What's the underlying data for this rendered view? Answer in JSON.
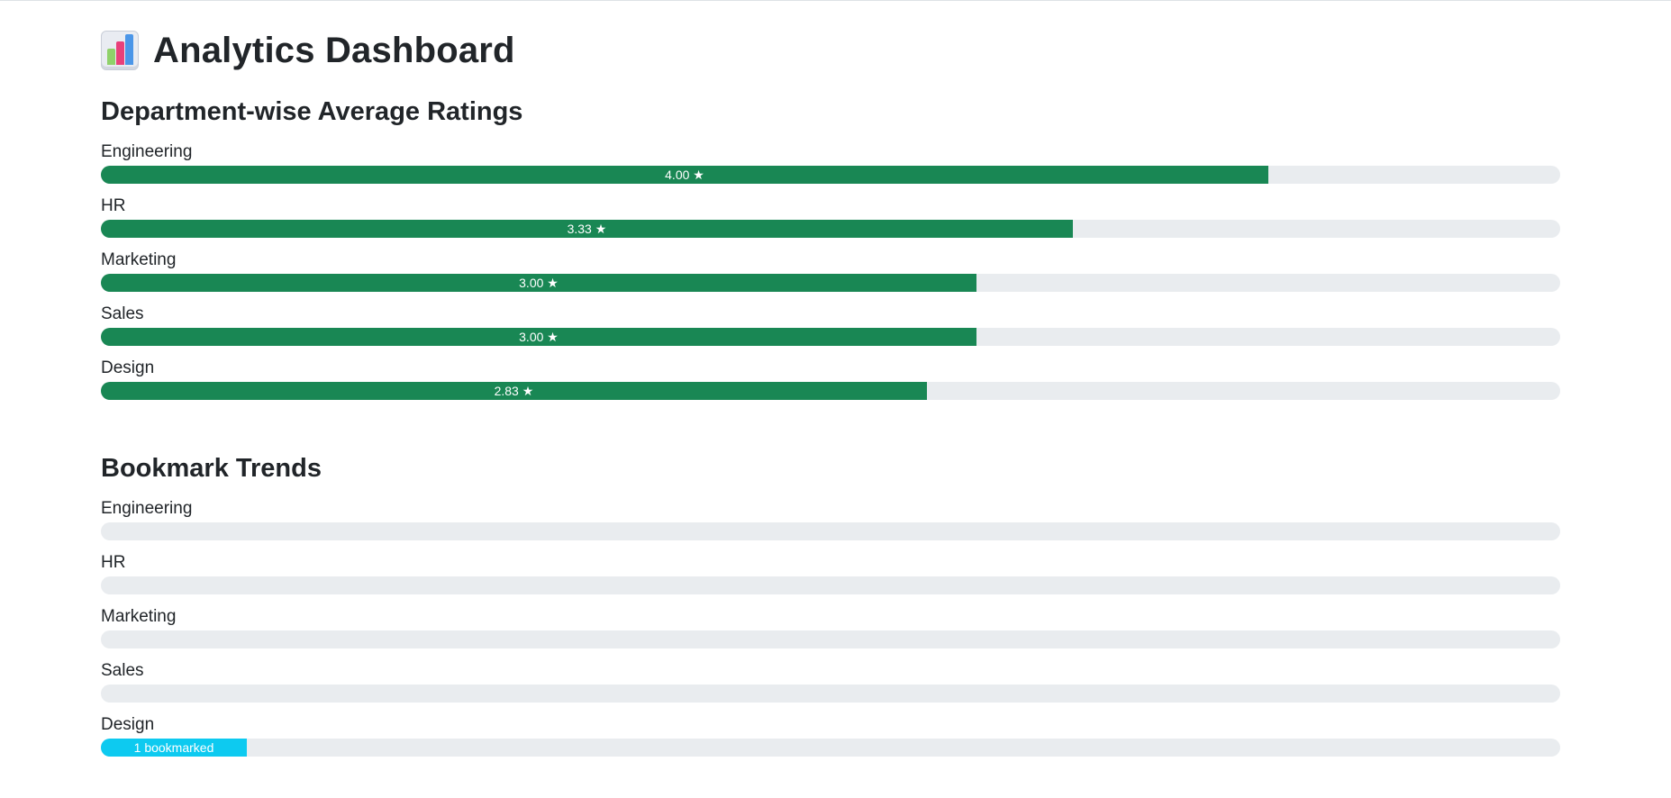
{
  "header": {
    "title": "Analytics Dashboard",
    "icon": "bar-chart-icon"
  },
  "ratings": {
    "title": "Department-wise Average Ratings",
    "max_rating": 5,
    "color": "#198754",
    "rows": [
      {
        "label": "Engineering",
        "value": 4.0,
        "text": "4.00 ★"
      },
      {
        "label": "HR",
        "value": 3.33,
        "text": "3.33 ★"
      },
      {
        "label": "Marketing",
        "value": 3.0,
        "text": "3.00 ★"
      },
      {
        "label": "Sales",
        "value": 3.0,
        "text": "3.00 ★"
      },
      {
        "label": "Design",
        "value": 2.83,
        "text": "2.83 ★"
      }
    ]
  },
  "bookmarks": {
    "title": "Bookmark Trends",
    "color": "#0dcaf0",
    "rows": [
      {
        "label": "Engineering",
        "fraction": 0,
        "text": ""
      },
      {
        "label": "HR",
        "fraction": 0,
        "text": ""
      },
      {
        "label": "Marketing",
        "fraction": 0,
        "text": ""
      },
      {
        "label": "Sales",
        "fraction": 0,
        "text": ""
      },
      {
        "label": "Design",
        "fraction": 0.1,
        "text": "1 bookmarked"
      }
    ]
  }
}
